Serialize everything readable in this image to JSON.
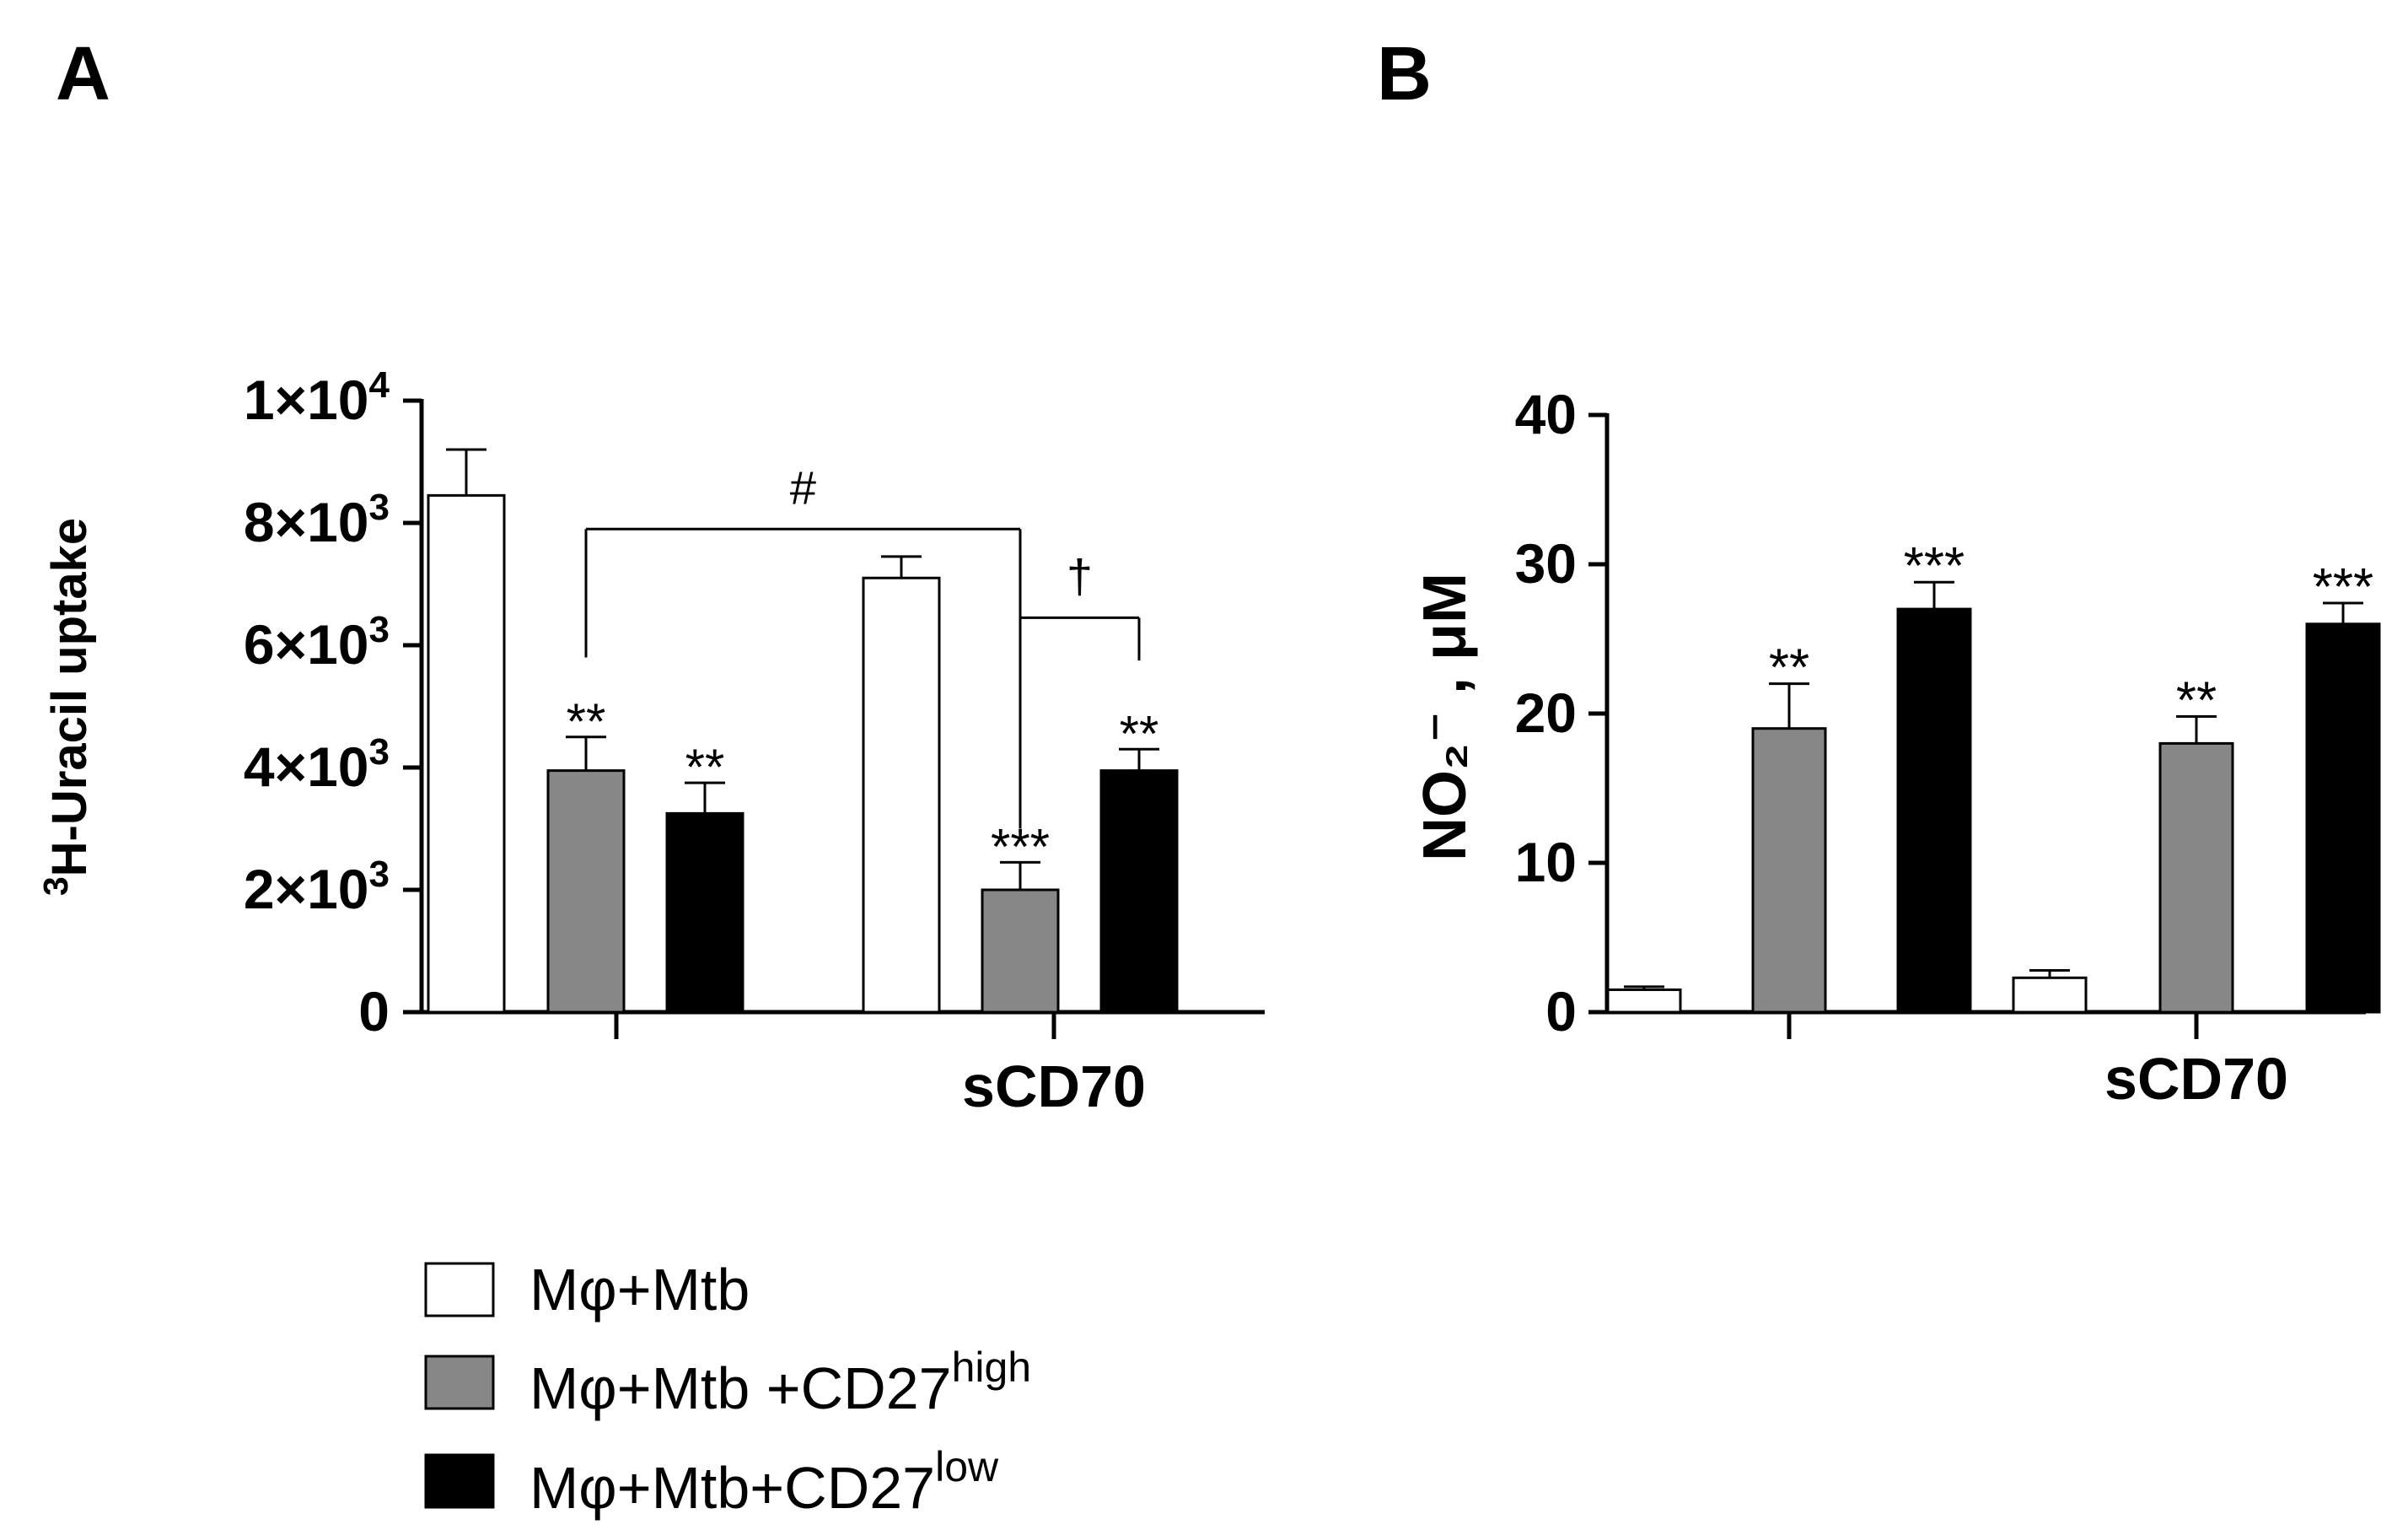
{
  "figure": {
    "panels": [
      {
        "id": "A",
        "label": "A"
      },
      {
        "id": "B",
        "label": "B"
      }
    ]
  },
  "legend": [
    {
      "text": "Mφ+Mtb",
      "sup": "",
      "color": "#ffffff"
    },
    {
      "text": "Mφ+Mtb +CD27",
      "sup": "high",
      "color": "#878787"
    },
    {
      "text": "Mφ+Mtb+CD27",
      "sup": "low",
      "color": "#000000"
    }
  ],
  "chart_data": [
    {
      "panel": "A",
      "type": "bar",
      "title": "",
      "ylabel": "H-Uracil uptake",
      "ylabel_sup": "3",
      "ylim": [
        0,
        10000
      ],
      "yticks": [
        {
          "value": 0,
          "label": "0",
          "exp": ""
        },
        {
          "value": 2000,
          "label": "2×10",
          "exp": "3"
        },
        {
          "value": 4000,
          "label": "4×10",
          "exp": "3"
        },
        {
          "value": 6000,
          "label": "6×10",
          "exp": "3"
        },
        {
          "value": 8000,
          "label": "8×10",
          "exp": "3"
        },
        {
          "value": 10000,
          "label": "1×10",
          "exp": "4"
        }
      ],
      "categories": [
        "",
        "sCD70"
      ],
      "series": [
        {
          "name": "Mφ+Mtb",
          "color": "#ffffff",
          "values": [
            8450,
            7100
          ],
          "errors": [
            750,
            350
          ],
          "sig": [
            "",
            ""
          ]
        },
        {
          "name": "Mφ+Mtb +CD27high",
          "color": "#878787",
          "values": [
            3950,
            2000
          ],
          "errors": [
            550,
            450
          ],
          "sig": [
            "**",
            "***"
          ]
        },
        {
          "name": "Mφ+Mtb+CD27low",
          "color": "#000000",
          "values": [
            3250,
            3950
          ],
          "errors": [
            500,
            350
          ],
          "sig": [
            "**",
            "**"
          ]
        }
      ],
      "brackets": [
        {
          "label": "#",
          "from_category": 0,
          "from_series": 1,
          "to_category": 1,
          "to_series": 1,
          "level": 7900,
          "drop_value": 5800
        },
        {
          "label": "†",
          "from_category": 1,
          "from_series": 1,
          "to_category": 1,
          "to_series": 2,
          "level": 6450,
          "drop_value": 5750
        }
      ]
    },
    {
      "panel": "B",
      "type": "bar",
      "title": "",
      "ylabel": "NO₂⁻ , μM",
      "ylim": [
        0,
        40
      ],
      "yticks": [
        {
          "value": 0,
          "label": "0",
          "exp": ""
        },
        {
          "value": 10,
          "label": "10",
          "exp": ""
        },
        {
          "value": 20,
          "label": "20",
          "exp": ""
        },
        {
          "value": 30,
          "label": "30",
          "exp": ""
        },
        {
          "value": 40,
          "label": "40",
          "exp": ""
        }
      ],
      "categories": [
        "",
        "sCD70"
      ],
      "series": [
        {
          "name": "Mφ+Mtb",
          "color": "#ffffff",
          "values": [
            1.5,
            2.3
          ],
          "errors": [
            0.2,
            0.5
          ],
          "sig": [
            "",
            ""
          ]
        },
        {
          "name": "Mφ+Mtb +CD27high",
          "color": "#878787",
          "values": [
            19,
            18
          ],
          "errors": [
            3,
            1.8
          ],
          "sig": [
            "**",
            "**"
          ]
        },
        {
          "name": "Mφ+Mtb+CD27low",
          "color": "#000000",
          "values": [
            27,
            26
          ],
          "errors": [
            1.8,
            1.4
          ],
          "sig": [
            "***",
            "***"
          ]
        }
      ],
      "brackets": []
    }
  ]
}
